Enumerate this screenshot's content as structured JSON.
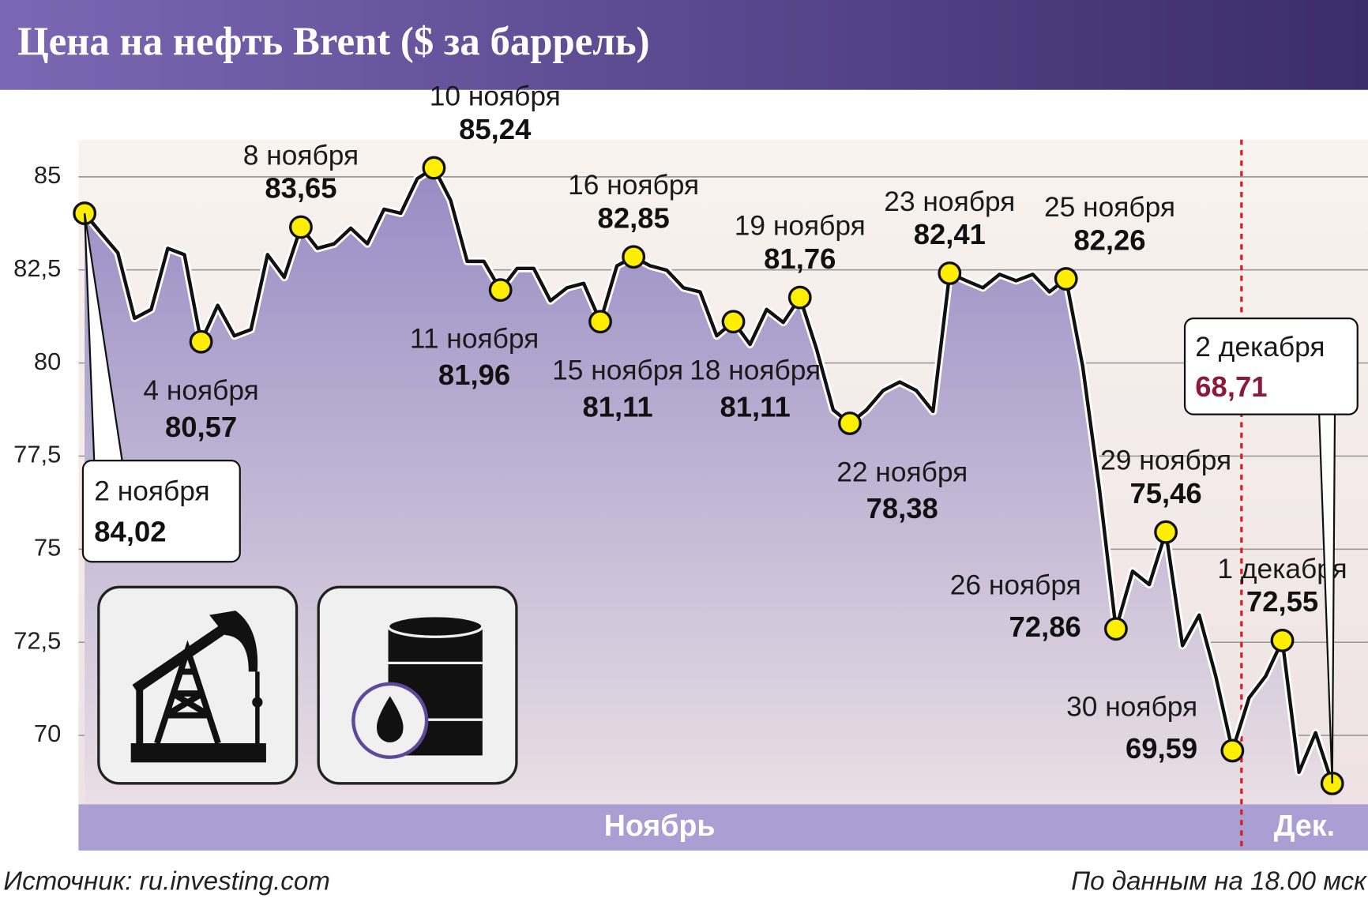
{
  "chart_data": {
    "type": "line",
    "title": "Цена на нефть Brent ($ за баррель)",
    "source": "Источник: ru.investing.com",
    "note": "По данным на 18.00 мск",
    "months": [
      "Ноябрь",
      "Дек."
    ],
    "categories": [
      "2 ноября",
      null,
      null,
      null,
      null,
      null,
      null,
      "4 ноября",
      null,
      null,
      null,
      null,
      null,
      "8 ноября",
      null,
      null,
      null,
      null,
      null,
      null,
      null,
      "10 ноября",
      null,
      null,
      null,
      "11 ноября",
      null,
      null,
      null,
      null,
      null,
      "15 ноября",
      null,
      "16 ноября",
      null,
      null,
      null,
      null,
      null,
      "18 ноября",
      null,
      null,
      null,
      "19 ноября",
      null,
      null,
      "22 ноября",
      null,
      null,
      null,
      null,
      null,
      "23 ноября",
      null,
      null,
      null,
      null,
      null,
      null,
      "25 ноября",
      null,
      null,
      "26 ноября",
      null,
      null,
      "29 ноября",
      null,
      null,
      null,
      "30 ноября",
      null,
      null,
      "1 декабря",
      null,
      null,
      "2 декабря"
    ],
    "values": [
      84.02,
      83.48,
      82.96,
      81.2,
      81.44,
      83.08,
      82.91,
      80.57,
      81.55,
      80.73,
      80.9,
      82.91,
      82.3,
      83.65,
      83.08,
      83.2,
      83.62,
      83.2,
      84.13,
      84.02,
      84.95,
      85.24,
      84.37,
      82.73,
      82.73,
      81.96,
      82.54,
      82.54,
      81.67,
      82.02,
      82.14,
      81.11,
      82.61,
      82.85,
      82.61,
      82.49,
      82.02,
      81.91,
      80.73,
      81.11,
      80.5,
      81.44,
      81.09,
      81.76,
      80.38,
      78.74,
      78.38,
      78.74,
      79.26,
      79.49,
      79.26,
      78.7,
      82.41,
      82.21,
      82.02,
      82.38,
      82.21,
      82.38,
      81.91,
      82.26,
      79.91,
      76.63,
      72.86,
      74.41,
      74.05,
      75.46,
      72.41,
      73.23,
      71.59,
      69.59,
      71.01,
      71.59,
      72.55,
      69.01,
      70.07,
      68.71
    ],
    "value_labels": [
      "84,02",
      null,
      null,
      null,
      null,
      null,
      null,
      "80,57",
      null,
      null,
      null,
      null,
      null,
      "83,65",
      null,
      null,
      null,
      null,
      null,
      null,
      null,
      "85,24",
      null,
      null,
      null,
      "81,96",
      null,
      null,
      null,
      null,
      null,
      "81,11",
      null,
      "82,85",
      null,
      null,
      null,
      null,
      null,
      "81,11",
      null,
      null,
      null,
      "81,76",
      null,
      null,
      "78,38",
      null,
      null,
      null,
      null,
      null,
      "82,41",
      null,
      null,
      null,
      null,
      null,
      null,
      "82,26",
      null,
      null,
      "72,86",
      null,
      null,
      "75,46",
      null,
      null,
      null,
      "69,59",
      null,
      null,
      "72,55",
      null,
      null,
      "68,71"
    ],
    "ylim": [
      68.15,
      86.0
    ],
    "yticks": [
      {
        "value": 70,
        "label": "70"
      },
      {
        "value": 72.5,
        "label": "72,5"
      },
      {
        "value": 75,
        "label": "75"
      },
      {
        "value": 77.5,
        "label": "77,5"
      },
      {
        "value": 80,
        "label": "80"
      },
      {
        "value": 82.5,
        "label": "82,5"
      },
      {
        "value": 85,
        "label": "85"
      }
    ],
    "grid": true,
    "color": "#111111",
    "marker_color": "#ffee00",
    "highlight_color": "#8b1a3a"
  }
}
